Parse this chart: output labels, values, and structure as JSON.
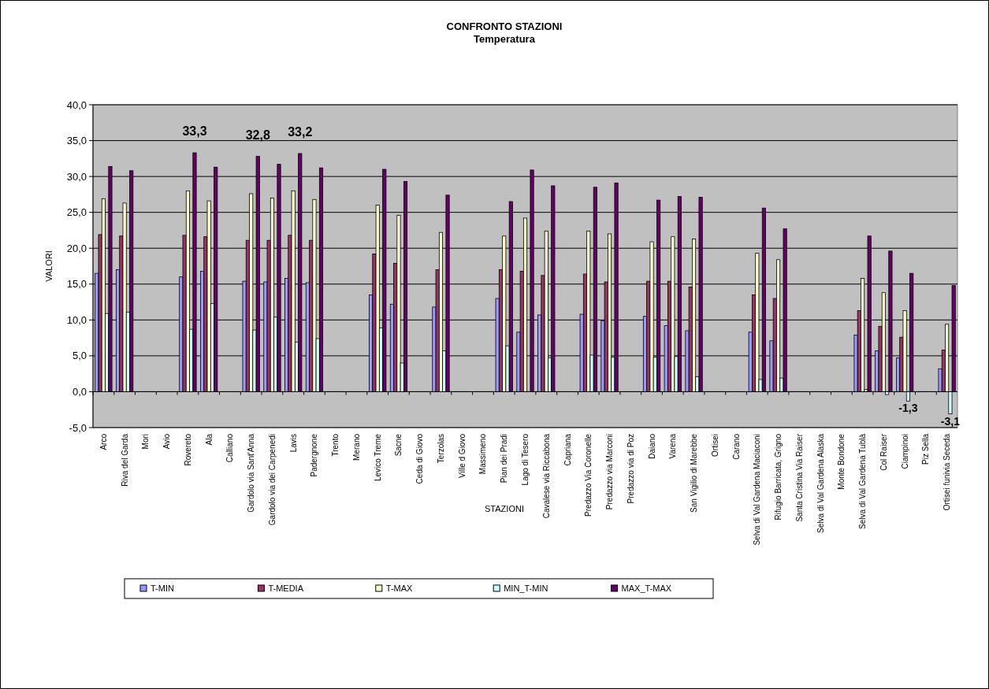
{
  "chart_data": {
    "type": "bar",
    "title": "CONFRONTO STAZIONI",
    "subtitle": "Temperatura",
    "xlabel": "STAZIONI",
    "ylabel": "VALORI",
    "categories": [
      "Arco",
      "Riva del Garda",
      "Mori",
      "Avio",
      "Rovereto",
      "Ala",
      "Calliano",
      "Gardolo via Sant'Anna",
      "Gardolo via dei Carpenedi",
      "Lavis",
      "Padergnone",
      "Trento",
      "Merano",
      "Levico Treme",
      "Sacne",
      "Ceda di Giovo",
      "Terzolas",
      "Ville d Giovo",
      "Massimeno",
      "Pian dei Pradi",
      "Lago di Tesero",
      "Cavalese via Riccabona",
      "Capriana",
      "Predazzo Via Coronelle",
      "Predazzo via Marconi",
      "Predazzo via di Poz",
      "Daiano",
      "Varena",
      "San Vigilio di Marebbe",
      "Ortisei",
      "Carano",
      "Selva di Val Gardena Maciaconi",
      "Rifugio Barricata, Grigno",
      "Santa Cristina Via Raiser",
      "Selva di Val Gardena Alaska",
      "Monte Bondone",
      "Selva di Val Gardena Tublà",
      "Col Raiser",
      "Ciampinoi",
      "Piz Sella",
      "Ortisei funivia Seceda"
    ],
    "series": [
      {
        "name": "T-MIN",
        "color": "#9999ff",
        "values": [
          16.5,
          17.0,
          null,
          null,
          16.0,
          16.8,
          null,
          15.4,
          15.3,
          15.8,
          15.2,
          null,
          null,
          13.5,
          12.2,
          null,
          11.8,
          null,
          null,
          13.0,
          8.3,
          10.7,
          null,
          10.8,
          9.9,
          null,
          10.5,
          9.2,
          8.5,
          null,
          null,
          8.3,
          7.1,
          null,
          null,
          null,
          7.9,
          5.7,
          4.7,
          null,
          3.2
        ]
      },
      {
        "name": "T-MEDIA",
        "color": "#993366",
        "values": [
          21.9,
          21.7,
          null,
          null,
          21.8,
          21.6,
          null,
          21.1,
          21.1,
          21.8,
          21.1,
          null,
          null,
          19.2,
          17.9,
          null,
          17.0,
          null,
          null,
          17.0,
          16.8,
          16.2,
          null,
          16.4,
          15.3,
          null,
          15.4,
          15.4,
          14.6,
          null,
          null,
          13.5,
          13.0,
          null,
          null,
          null,
          11.3,
          9.1,
          7.6,
          null,
          5.8
        ]
      },
      {
        "name": "T-MAX",
        "color": "#ffffcc",
        "values": [
          26.9,
          26.3,
          null,
          null,
          28.0,
          26.6,
          null,
          27.6,
          27.0,
          28.0,
          26.8,
          null,
          null,
          26.0,
          24.6,
          null,
          22.2,
          null,
          null,
          21.7,
          24.2,
          22.4,
          null,
          22.4,
          22.0,
          null,
          20.9,
          21.6,
          21.3,
          null,
          null,
          19.3,
          18.4,
          null,
          null,
          null,
          15.8,
          13.8,
          11.3,
          null,
          9.4
        ]
      },
      {
        "name": "MIN_T-MIN",
        "color": "#ccffff",
        "values": [
          10.9,
          11.1,
          null,
          null,
          8.7,
          12.3,
          null,
          8.6,
          10.4,
          6.9,
          7.4,
          null,
          null,
          8.9,
          4.0,
          null,
          5.7,
          null,
          null,
          6.4,
          null,
          4.7,
          null,
          5.1,
          4.8,
          null,
          4.8,
          4.9,
          2.1,
          null,
          null,
          1.7,
          1.9,
          null,
          null,
          null,
          0.3,
          -0.4,
          -1.3,
          null,
          -3.1
        ],
        "value_labels": [
          null,
          null,
          null,
          null,
          null,
          null,
          null,
          null,
          null,
          null,
          null,
          null,
          null,
          null,
          null,
          null,
          null,
          null,
          null,
          null,
          null,
          null,
          null,
          null,
          null,
          null,
          null,
          null,
          null,
          null,
          null,
          null,
          null,
          null,
          null,
          null,
          null,
          null,
          "-1,3",
          null,
          "-3,1"
        ]
      },
      {
        "name": "MAX_T-MAX",
        "color": "#660066",
        "values": [
          31.4,
          30.8,
          null,
          null,
          33.3,
          31.3,
          null,
          32.8,
          31.7,
          33.2,
          31.2,
          null,
          null,
          31.0,
          29.3,
          null,
          27.4,
          null,
          null,
          26.5,
          30.9,
          28.7,
          null,
          28.5,
          29.1,
          null,
          26.7,
          27.2,
          27.1,
          null,
          null,
          25.6,
          22.7,
          null,
          null,
          null,
          21.7,
          19.6,
          16.5,
          null,
          14.8
        ],
        "value_labels": [
          null,
          null,
          null,
          null,
          "33,3",
          null,
          null,
          "32,8",
          null,
          "33,2",
          null,
          null,
          null,
          null,
          null,
          null,
          null,
          null,
          null,
          null,
          null,
          null,
          null,
          null,
          null,
          null,
          null,
          null,
          null,
          null,
          null,
          null,
          null,
          null,
          null,
          null,
          null,
          null,
          null,
          null,
          null
        ]
      }
    ],
    "ylim": [
      -5,
      40
    ],
    "yticks": [
      {
        "value": -5,
        "label": "-5,0"
      },
      {
        "value": 0,
        "label": "0,0"
      },
      {
        "value": 5,
        "label": "5,0"
      },
      {
        "value": 10,
        "label": "10,0"
      },
      {
        "value": 15,
        "label": "15,0"
      },
      {
        "value": 20,
        "label": "20,0"
      },
      {
        "value": 25,
        "label": "25,0"
      },
      {
        "value": 30,
        "label": "30,0"
      },
      {
        "value": 35,
        "label": "35,0"
      },
      {
        "value": 40,
        "label": "40,0"
      }
    ],
    "grid": "y",
    "legend": "bottom"
  }
}
